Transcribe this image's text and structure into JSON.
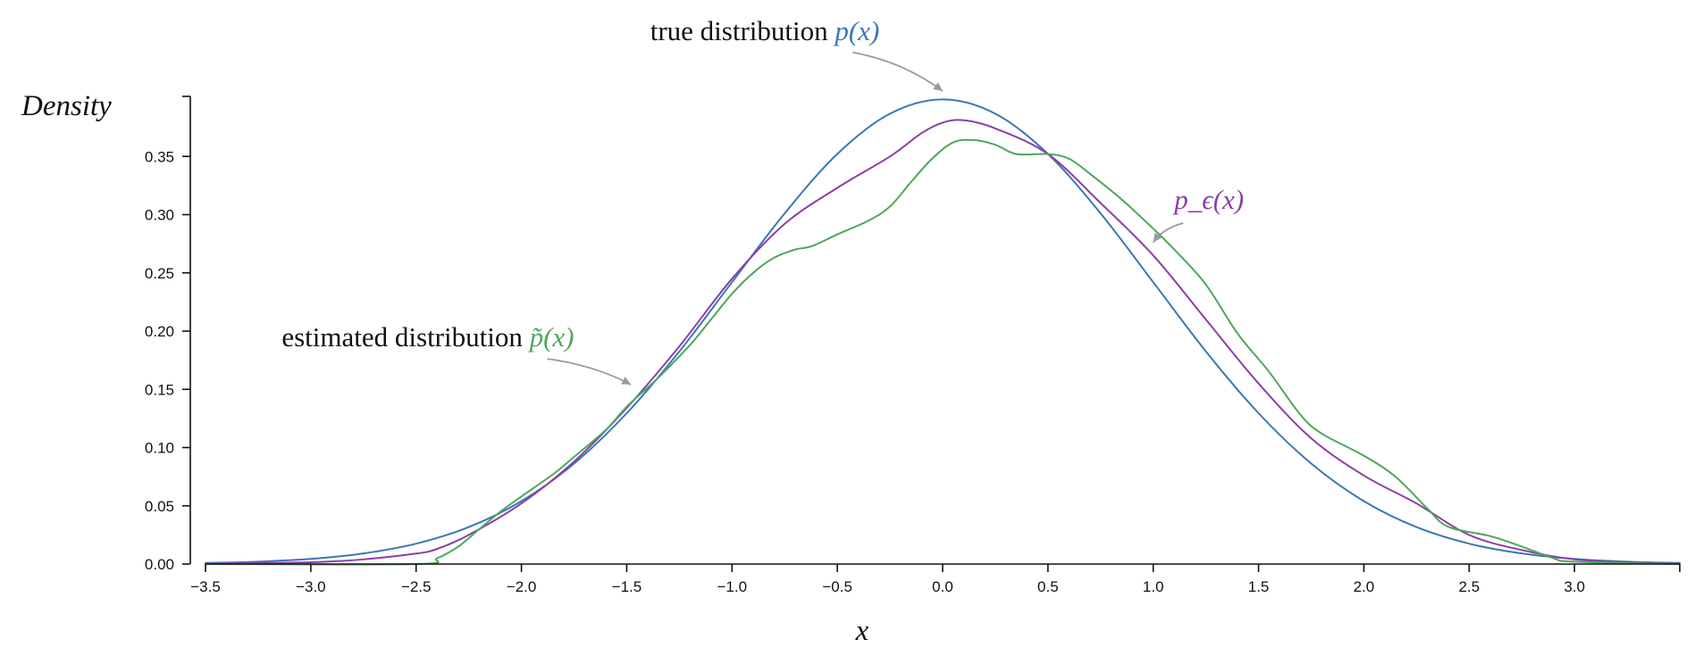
{
  "chart_data": {
    "type": "line",
    "title": "",
    "xlabel": "x",
    "ylabel": "Density",
    "xlim": [
      -3.5,
      3.5
    ],
    "ylim": [
      0,
      0.4
    ],
    "grid": false,
    "x_ticks": [
      -3.5,
      -3.0,
      -2.5,
      -2.0,
      -1.5,
      -1.0,
      -0.5,
      0.0,
      0.5,
      1.0,
      1.5,
      2.0,
      2.5,
      3.0
    ],
    "x_tick_labels": [
      "−3.5",
      "−3.0",
      "−2.5",
      "−2.0",
      "−1.5",
      "−1.0",
      "−0.5",
      "0.0",
      "0.5",
      "1.0",
      "1.5",
      "2.0",
      "2.5",
      "3.0"
    ],
    "y_ticks": [
      0.0,
      0.05,
      0.1,
      0.15,
      0.2,
      0.25,
      0.3,
      0.35
    ],
    "y_tick_labels": [
      "0.00",
      "0.05",
      "0.10",
      "0.15",
      "0.20",
      "0.25",
      "0.30",
      "0.35"
    ],
    "series": [
      {
        "name": "p(x)",
        "color": "#3a77b5",
        "points": [
          [
            -3.5,
            0.0009
          ],
          [
            -3.25,
            0.002
          ],
          [
            -3.0,
            0.0044
          ],
          [
            -2.75,
            0.0091
          ],
          [
            -2.5,
            0.0175
          ],
          [
            -2.25,
            0.0317
          ],
          [
            -2.0,
            0.054
          ],
          [
            -1.75,
            0.0863
          ],
          [
            -1.5,
            0.1295
          ],
          [
            -1.25,
            0.1826
          ],
          [
            -1.0,
            0.242
          ],
          [
            -0.75,
            0.3011
          ],
          [
            -0.5,
            0.3521
          ],
          [
            -0.25,
            0.3867
          ],
          [
            0.0,
            0.3989
          ],
          [
            0.25,
            0.3867
          ],
          [
            0.5,
            0.3521
          ],
          [
            0.75,
            0.3011
          ],
          [
            1.0,
            0.242
          ],
          [
            1.25,
            0.1826
          ],
          [
            1.5,
            0.1295
          ],
          [
            1.75,
            0.0863
          ],
          [
            2.0,
            0.054
          ],
          [
            2.25,
            0.0317
          ],
          [
            2.5,
            0.0175
          ],
          [
            2.75,
            0.0091
          ],
          [
            3.0,
            0.0044
          ],
          [
            3.25,
            0.002
          ],
          [
            3.5,
            0.0009
          ]
        ]
      },
      {
        "name": "p_ϵ(x)",
        "color": "#8b3fa8",
        "points": [
          [
            -3.5,
            0.0003
          ],
          [
            -3.0,
            0.0015
          ],
          [
            -2.75,
            0.004
          ],
          [
            -2.5,
            0.009
          ],
          [
            -2.4,
            0.013
          ],
          [
            -2.25,
            0.025
          ],
          [
            -2.0,
            0.052
          ],
          [
            -1.75,
            0.088
          ],
          [
            -1.5,
            0.134
          ],
          [
            -1.25,
            0.187
          ],
          [
            -1.0,
            0.245
          ],
          [
            -0.75,
            0.292
          ],
          [
            -0.5,
            0.323
          ],
          [
            -0.25,
            0.35
          ],
          [
            -0.1,
            0.37
          ],
          [
            0.0,
            0.379
          ],
          [
            0.1,
            0.381
          ],
          [
            0.25,
            0.374
          ],
          [
            0.5,
            0.352
          ],
          [
            0.75,
            0.31
          ],
          [
            1.0,
            0.265
          ],
          [
            1.25,
            0.21
          ],
          [
            1.5,
            0.155
          ],
          [
            1.75,
            0.108
          ],
          [
            2.0,
            0.076
          ],
          [
            2.25,
            0.052
          ],
          [
            2.5,
            0.025
          ],
          [
            2.75,
            0.012
          ],
          [
            3.0,
            0.004
          ],
          [
            3.25,
            0.0015
          ],
          [
            3.5,
            0.0003
          ]
        ]
      },
      {
        "name": "p̃(x)",
        "color": "#4fa65b",
        "points": [
          [
            -3.5,
            0.0
          ],
          [
            -2.5,
            0.0
          ],
          [
            -2.4,
            0.005
          ],
          [
            -2.3,
            0.015
          ],
          [
            -2.2,
            0.03
          ],
          [
            -2.1,
            0.045
          ],
          [
            -2.0,
            0.058
          ],
          [
            -1.85,
            0.077
          ],
          [
            -1.75,
            0.092
          ],
          [
            -1.6,
            0.115
          ],
          [
            -1.5,
            0.135
          ],
          [
            -1.35,
            0.16
          ],
          [
            -1.2,
            0.188
          ],
          [
            -1.1,
            0.21
          ],
          [
            -1.0,
            0.232
          ],
          [
            -0.9,
            0.25
          ],
          [
            -0.8,
            0.263
          ],
          [
            -0.7,
            0.27
          ],
          [
            -0.62,
            0.273
          ],
          [
            -0.5,
            0.283
          ],
          [
            -0.35,
            0.295
          ],
          [
            -0.25,
            0.307
          ],
          [
            -0.15,
            0.328
          ],
          [
            -0.05,
            0.348
          ],
          [
            0.05,
            0.362
          ],
          [
            0.15,
            0.364
          ],
          [
            0.25,
            0.36
          ],
          [
            0.35,
            0.352
          ],
          [
            0.5,
            0.352
          ],
          [
            0.6,
            0.348
          ],
          [
            0.7,
            0.335
          ],
          [
            0.85,
            0.313
          ],
          [
            1.0,
            0.288
          ],
          [
            1.1,
            0.27
          ],
          [
            1.25,
            0.24
          ],
          [
            1.4,
            0.198
          ],
          [
            1.55,
            0.165
          ],
          [
            1.7,
            0.128
          ],
          [
            1.8,
            0.112
          ],
          [
            2.0,
            0.093
          ],
          [
            2.15,
            0.075
          ],
          [
            2.3,
            0.048
          ],
          [
            2.4,
            0.032
          ],
          [
            2.6,
            0.024
          ],
          [
            2.75,
            0.015
          ],
          [
            2.9,
            0.005
          ],
          [
            3.0,
            0.002
          ],
          [
            3.5,
            0.0
          ]
        ]
      }
    ],
    "annotations": [
      {
        "text": "true distribution ",
        "math": "p(x)",
        "color": "#3a77b5",
        "point_to": [
          0.0,
          0.4
        ],
        "text_at": [
          -0.3,
          0.45
        ],
        "text_anchor": "end"
      },
      {
        "text": "",
        "math": "p_ϵ(x)",
        "color": "#8b3fa8",
        "point_to": [
          1.0,
          0.27
        ],
        "text_at": [
          1.1,
          0.305
        ],
        "text_anchor": "start"
      },
      {
        "text": "estimated distribution ",
        "math": "p̃(x)",
        "color": "#4fa65b",
        "point_to": [
          -1.48,
          0.148
        ],
        "text_at": [
          -1.75,
          0.187
        ],
        "text_anchor": "end"
      }
    ]
  }
}
